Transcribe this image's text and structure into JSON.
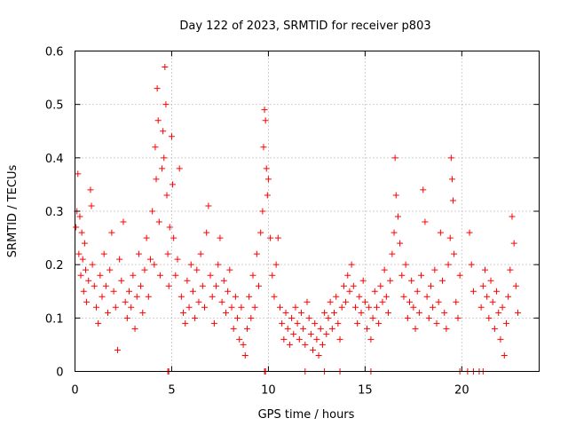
{
  "chart_data": {
    "type": "scatter",
    "title": "Day 122 of 2023, SRMTID for receiver p803",
    "xlabel": "GPS time / hours",
    "ylabel": "SRMTID / TECUs",
    "xlim": [
      0,
      24
    ],
    "ylim": [
      0,
      0.6
    ],
    "xticks": [
      0,
      5,
      10,
      15,
      20
    ],
    "xtick_labels": [
      "0",
      "5",
      "10",
      "15",
      "20"
    ],
    "yticks": [
      0,
      0.1,
      0.2,
      0.3,
      0.4,
      0.5,
      0.6
    ],
    "ytick_labels": [
      "0",
      "0.1",
      "0.2",
      "0.3",
      "0.4",
      "0.5",
      "0.6"
    ],
    "grid": true,
    "marker": "+",
    "color": "#ff0000",
    "series": [
      {
        "name": "SRMTID",
        "points": [
          [
            0.05,
            0.27
          ],
          [
            0.1,
            0.3
          ],
          [
            0.15,
            0.37
          ],
          [
            0.2,
            0.22
          ],
          [
            0.25,
            0.29
          ],
          [
            0.3,
            0.18
          ],
          [
            0.35,
            0.26
          ],
          [
            0.4,
            0.21
          ],
          [
            0.45,
            0.15
          ],
          [
            0.5,
            0.24
          ],
          [
            0.55,
            0.19
          ],
          [
            0.6,
            0.13
          ],
          [
            0.7,
            0.17
          ],
          [
            0.8,
            0.34
          ],
          [
            0.85,
            0.31
          ],
          [
            0.9,
            0.2
          ],
          [
            1.0,
            0.16
          ],
          [
            1.1,
            0.12
          ],
          [
            1.2,
            0.09
          ],
          [
            1.3,
            0.18
          ],
          [
            1.4,
            0.14
          ],
          [
            1.5,
            0.22
          ],
          [
            1.6,
            0.16
          ],
          [
            1.7,
            0.11
          ],
          [
            1.8,
            0.19
          ],
          [
            1.9,
            0.26
          ],
          [
            2.0,
            0.15
          ],
          [
            2.1,
            0.12
          ],
          [
            2.2,
            0.04
          ],
          [
            2.3,
            0.21
          ],
          [
            2.4,
            0.17
          ],
          [
            2.5,
            0.28
          ],
          [
            2.6,
            0.13
          ],
          [
            2.7,
            0.1
          ],
          [
            2.8,
            0.15
          ],
          [
            2.9,
            0.12
          ],
          [
            3.0,
            0.18
          ],
          [
            3.1,
            0.08
          ],
          [
            3.2,
            0.14
          ],
          [
            3.3,
            0.22
          ],
          [
            3.4,
            0.16
          ],
          [
            3.5,
            0.11
          ],
          [
            3.6,
            0.19
          ],
          [
            3.7,
            0.25
          ],
          [
            3.8,
            0.14
          ],
          [
            3.9,
            0.21
          ],
          [
            4.0,
            0.3
          ],
          [
            4.1,
            0.2
          ],
          [
            4.15,
            0.42
          ],
          [
            4.2,
            0.36
          ],
          [
            4.25,
            0.53
          ],
          [
            4.3,
            0.47
          ],
          [
            4.35,
            0.28
          ],
          [
            4.4,
            0.18
          ],
          [
            4.5,
            0.38
          ],
          [
            4.55,
            0.45
          ],
          [
            4.6,
            0.4
          ],
          [
            4.65,
            0.57
          ],
          [
            4.7,
            0.5
          ],
          [
            4.75,
            0.33
          ],
          [
            4.8,
            0.22
          ],
          [
            4.85,
            0.16
          ],
          [
            4.9,
            0.27
          ],
          [
            5.0,
            0.44
          ],
          [
            5.05,
            0.35
          ],
          [
            5.1,
            0.25
          ],
          [
            5.2,
            0.18
          ],
          [
            5.3,
            0.21
          ],
          [
            5.4,
            0.38
          ],
          [
            5.5,
            0.14
          ],
          [
            5.6,
            0.11
          ],
          [
            5.7,
            0.09
          ],
          [
            5.8,
            0.17
          ],
          [
            5.9,
            0.12
          ],
          [
            6.0,
            0.2
          ],
          [
            6.1,
            0.15
          ],
          [
            6.2,
            0.1
          ],
          [
            6.3,
            0.19
          ],
          [
            6.4,
            0.13
          ],
          [
            6.5,
            0.22
          ],
          [
            6.6,
            0.16
          ],
          [
            6.7,
            0.12
          ],
          [
            6.8,
            0.26
          ],
          [
            6.9,
            0.31
          ],
          [
            7.0,
            0.18
          ],
          [
            7.1,
            0.14
          ],
          [
            7.2,
            0.09
          ],
          [
            7.3,
            0.16
          ],
          [
            7.4,
            0.2
          ],
          [
            7.5,
            0.25
          ],
          [
            7.6,
            0.13
          ],
          [
            7.7,
            0.17
          ],
          [
            7.8,
            0.11
          ],
          [
            7.9,
            0.15
          ],
          [
            8.0,
            0.19
          ],
          [
            8.1,
            0.12
          ],
          [
            8.2,
            0.08
          ],
          [
            8.3,
            0.14
          ],
          [
            8.4,
            0.1
          ],
          [
            8.5,
            0.06
          ],
          [
            8.6,
            0.12
          ],
          [
            8.7,
            0.05
          ],
          [
            8.8,
            0.03
          ],
          [
            8.9,
            0.08
          ],
          [
            9.0,
            0.14
          ],
          [
            9.1,
            0.1
          ],
          [
            9.2,
            0.18
          ],
          [
            9.3,
            0.12
          ],
          [
            9.4,
            0.22
          ],
          [
            9.5,
            0.16
          ],
          [
            9.6,
            0.26
          ],
          [
            9.7,
            0.3
          ],
          [
            9.75,
            0.42
          ],
          [
            9.8,
            0.49
          ],
          [
            9.85,
            0.47
          ],
          [
            9.9,
            0.38
          ],
          [
            9.95,
            0.33
          ],
          [
            10.0,
            0.36
          ],
          [
            10.1,
            0.25
          ],
          [
            10.2,
            0.18
          ],
          [
            10.3,
            0.14
          ],
          [
            10.4,
            0.2
          ],
          [
            10.5,
            0.25
          ],
          [
            10.6,
            0.12
          ],
          [
            10.7,
            0.09
          ],
          [
            10.8,
            0.06
          ],
          [
            10.9,
            0.11
          ],
          [
            11.0,
            0.08
          ],
          [
            11.1,
            0.05
          ],
          [
            11.2,
            0.1
          ],
          [
            11.3,
            0.07
          ],
          [
            11.4,
            0.12
          ],
          [
            11.5,
            0.09
          ],
          [
            11.6,
            0.06
          ],
          [
            11.7,
            0.11
          ],
          [
            11.8,
            0.08
          ],
          [
            11.9,
            0.05
          ],
          [
            12.0,
            0.13
          ],
          [
            12.1,
            0.1
          ],
          [
            12.2,
            0.07
          ],
          [
            12.3,
            0.04
          ],
          [
            12.4,
            0.09
          ],
          [
            12.5,
            0.06
          ],
          [
            12.6,
            0.03
          ],
          [
            12.7,
            0.08
          ],
          [
            12.8,
            0.05
          ],
          [
            12.9,
            0.11
          ],
          [
            13.0,
            0.07
          ],
          [
            13.1,
            0.1
          ],
          [
            13.2,
            0.13
          ],
          [
            13.3,
            0.08
          ],
          [
            13.4,
            0.11
          ],
          [
            13.5,
            0.14
          ],
          [
            13.6,
            0.09
          ],
          [
            13.7,
            0.06
          ],
          [
            13.8,
            0.12
          ],
          [
            13.9,
            0.16
          ],
          [
            14.0,
            0.13
          ],
          [
            14.1,
            0.18
          ],
          [
            14.2,
            0.15
          ],
          [
            14.3,
            0.2
          ],
          [
            14.4,
            0.16
          ],
          [
            14.5,
            0.12
          ],
          [
            14.6,
            0.09
          ],
          [
            14.7,
            0.14
          ],
          [
            14.8,
            0.11
          ],
          [
            14.9,
            0.17
          ],
          [
            15.0,
            0.13
          ],
          [
            15.1,
            0.08
          ],
          [
            15.2,
            0.12
          ],
          [
            15.3,
            0.06
          ],
          [
            15.4,
            0.1
          ],
          [
            15.5,
            0.15
          ],
          [
            15.6,
            0.12
          ],
          [
            15.7,
            0.09
          ],
          [
            15.8,
            0.16
          ],
          [
            15.9,
            0.13
          ],
          [
            16.0,
            0.19
          ],
          [
            16.1,
            0.14
          ],
          [
            16.2,
            0.11
          ],
          [
            16.3,
            0.17
          ],
          [
            16.4,
            0.22
          ],
          [
            16.5,
            0.26
          ],
          [
            16.55,
            0.4
          ],
          [
            16.6,
            0.33
          ],
          [
            16.7,
            0.29
          ],
          [
            16.8,
            0.24
          ],
          [
            16.9,
            0.18
          ],
          [
            17.0,
            0.14
          ],
          [
            17.1,
            0.2
          ],
          [
            17.2,
            0.1
          ],
          [
            17.3,
            0.13
          ],
          [
            17.4,
            0.17
          ],
          [
            17.5,
            0.12
          ],
          [
            17.6,
            0.08
          ],
          [
            17.7,
            0.15
          ],
          [
            17.8,
            0.11
          ],
          [
            17.9,
            0.18
          ],
          [
            18.0,
            0.34
          ],
          [
            18.1,
            0.28
          ],
          [
            18.2,
            0.14
          ],
          [
            18.3,
            0.1
          ],
          [
            18.4,
            0.16
          ],
          [
            18.5,
            0.12
          ],
          [
            18.6,
            0.19
          ],
          [
            18.7,
            0.09
          ],
          [
            18.8,
            0.13
          ],
          [
            18.9,
            0.26
          ],
          [
            19.0,
            0.17
          ],
          [
            19.1,
            0.11
          ],
          [
            19.2,
            0.08
          ],
          [
            19.3,
            0.2
          ],
          [
            19.4,
            0.25
          ],
          [
            19.45,
            0.4
          ],
          [
            19.5,
            0.36
          ],
          [
            19.55,
            0.32
          ],
          [
            19.6,
            0.22
          ],
          [
            19.7,
            0.13
          ],
          [
            19.8,
            0.1
          ],
          [
            19.9,
            0.18
          ],
          [
            20.4,
            0.26
          ],
          [
            20.5,
            0.2
          ],
          [
            20.6,
            0.15
          ],
          [
            21.0,
            0.12
          ],
          [
            21.1,
            0.16
          ],
          [
            21.2,
            0.19
          ],
          [
            21.3,
            0.14
          ],
          [
            21.4,
            0.1
          ],
          [
            21.5,
            0.17
          ],
          [
            21.6,
            0.13
          ],
          [
            21.7,
            0.08
          ],
          [
            21.8,
            0.15
          ],
          [
            21.9,
            0.11
          ],
          [
            22.0,
            0.06
          ],
          [
            22.1,
            0.12
          ],
          [
            22.2,
            0.03
          ],
          [
            22.3,
            0.09
          ],
          [
            22.4,
            0.14
          ],
          [
            22.5,
            0.19
          ],
          [
            22.6,
            0.29
          ],
          [
            22.7,
            0.24
          ],
          [
            22.8,
            0.16
          ],
          [
            22.9,
            0.11
          ]
        ]
      }
    ],
    "zero_points_x": [
      4.8,
      4.85,
      9.8,
      9.85,
      11.9,
      12.9,
      13.7,
      15.3,
      19.9,
      20.3,
      20.6,
      20.9,
      21.1
    ]
  }
}
